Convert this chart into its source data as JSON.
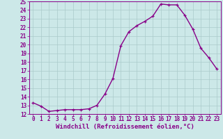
{
  "hours": [
    0,
    1,
    2,
    3,
    4,
    5,
    6,
    7,
    8,
    9,
    10,
    11,
    12,
    13,
    14,
    15,
    16,
    17,
    18,
    19,
    20,
    21,
    22,
    23
  ],
  "values": [
    13.3,
    12.9,
    12.3,
    12.4,
    12.5,
    12.5,
    12.5,
    12.6,
    13.0,
    14.3,
    16.1,
    19.9,
    21.5,
    22.2,
    22.7,
    23.3,
    24.7,
    24.6,
    24.6,
    23.4,
    21.8,
    19.6,
    18.5,
    17.2
  ],
  "line_color": "#880088",
  "marker": "+",
  "marker_size": 3.5,
  "bg_color": "#cce8e8",
  "grid_color": "#aacaca",
  "xlabel": "Windchill (Refroidissement éolien,°C)",
  "ylim": [
    12,
    25
  ],
  "xlim_min": -0.5,
  "xlim_max": 23.5,
  "yticks": [
    12,
    13,
    14,
    15,
    16,
    17,
    18,
    19,
    20,
    21,
    22,
    23,
    24,
    25
  ],
  "xticks": [
    0,
    1,
    2,
    3,
    4,
    5,
    6,
    7,
    8,
    9,
    10,
    11,
    12,
    13,
    14,
    15,
    16,
    17,
    18,
    19,
    20,
    21,
    22,
    23
  ],
  "tick_label_size": 5.5,
  "xlabel_size": 6.5,
  "spine_color": "#880088",
  "linewidth": 1.0,
  "marker_edge_width": 0.9
}
